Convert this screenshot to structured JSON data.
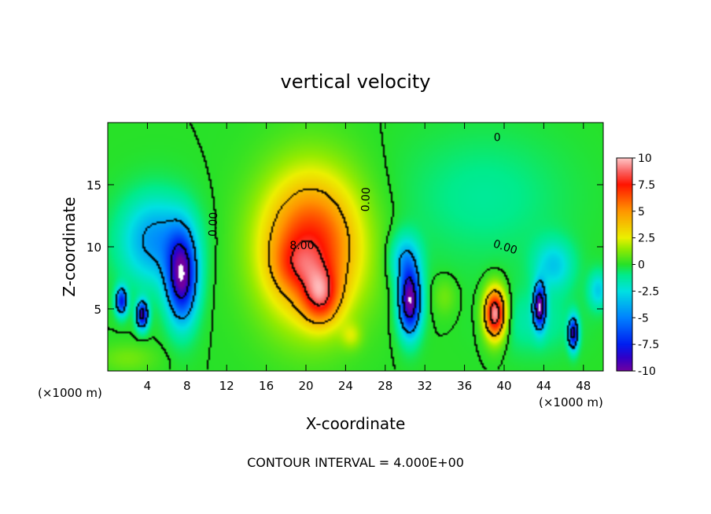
{
  "chart_data": {
    "type": "heatmap",
    "title": "vertical velocity",
    "xlabel": "X-coordinate",
    "ylabel": "Z-coordinate",
    "x_unit_label": "(×1000 m)",
    "x_unit_label_right": "(×1000 m)",
    "xlim": [
      0,
      50
    ],
    "ylim": [
      0,
      20
    ],
    "x_ticks": [
      4,
      8,
      12,
      16,
      20,
      24,
      28,
      32,
      36,
      40,
      44,
      48
    ],
    "y_ticks": [
      5,
      10,
      15
    ],
    "footer": "CONTOUR INTERVAL = 4.000E+00",
    "colorbar": {
      "min": -10,
      "max": 10,
      "tick_labels": [
        "10",
        "7.5",
        "5",
        "2.5",
        "0",
        "-2.5",
        "-5",
        "-7.5",
        "-10"
      ],
      "tick_values": [
        10,
        7.5,
        5,
        2.5,
        0,
        -2.5,
        -5,
        -7.5,
        -10
      ]
    },
    "contour_labels": [
      {
        "text": "0.00",
        "x": 11,
        "y": 11.8,
        "rotate": -88
      },
      {
        "text": "8.00",
        "x": 19.6,
        "y": 9.8,
        "rotate": 0
      },
      {
        "text": "0.00",
        "x": 26.4,
        "y": 13.8,
        "rotate": -88
      },
      {
        "text": "0.00",
        "x": 40.0,
        "y": 9.7,
        "rotate": 18
      },
      {
        "text": "0",
        "x": 39.3,
        "y": 18.5,
        "rotate": 0
      }
    ],
    "features": [
      {
        "x": 20.5,
        "z": 10.0,
        "sx": 5.0,
        "sz": 5.8,
        "value": 7.5
      },
      {
        "x": 21.5,
        "z": 6.0,
        "sx": 1.8,
        "sz": 2.2,
        "value": 4.8
      },
      {
        "x": 19.0,
        "z": 8.5,
        "sx": 2.2,
        "sz": 2.0,
        "value": 1.8
      },
      {
        "x": 24.6,
        "z": 2.8,
        "sx": 1.0,
        "sz": 1.0,
        "value": 1.5
      },
      {
        "x": 39.1,
        "z": 4.6,
        "sx": 1.1,
        "sz": 2.0,
        "value": 10.0
      },
      {
        "x": 7.5,
        "z": 7.5,
        "sx": 1.5,
        "sz": 3.5,
        "value": -9.5
      },
      {
        "x": 4.8,
        "z": 10.5,
        "sx": 3.5,
        "sz": 3.5,
        "value": -4.5
      },
      {
        "x": 1.4,
        "z": 5.6,
        "sx": 0.6,
        "sz": 1.1,
        "value": -7.5
      },
      {
        "x": 3.5,
        "z": 4.5,
        "sx": 0.6,
        "sz": 1.1,
        "value": -9.0
      },
      {
        "x": 30.5,
        "z": 5.6,
        "sx": 1.1,
        "sz": 2.6,
        "value": -10.5
      },
      {
        "x": 30.0,
        "z": 9.0,
        "sx": 1.5,
        "sz": 2.0,
        "value": -3.5
      },
      {
        "x": 43.6,
        "z": 5.2,
        "sx": 0.6,
        "sz": 1.7,
        "value": -9.5
      },
      {
        "x": 47.0,
        "z": 3.0,
        "sx": 0.5,
        "sz": 1.3,
        "value": -8.5
      },
      {
        "x": 45.0,
        "z": 8.5,
        "sx": 2.0,
        "sz": 2.0,
        "value": -3.0
      },
      {
        "x": 49.5,
        "z": 6.5,
        "sx": 1.0,
        "sz": 1.5,
        "value": -3.0
      },
      {
        "x": 38.0,
        "z": 14.0,
        "sx": 8.0,
        "sz": 5.0,
        "value": -1.2
      },
      {
        "x": 43.0,
        "z": 4.0,
        "sx": 4.0,
        "sz": 2.5,
        "value": -1.5
      },
      {
        "x": 2.0,
        "z": 1.0,
        "sx": 3.0,
        "sz": 1.2,
        "value": 1.0
      },
      {
        "x": 34.0,
        "z": 6.0,
        "sx": 1.2,
        "sz": 1.5,
        "value": 1.0
      }
    ]
  }
}
